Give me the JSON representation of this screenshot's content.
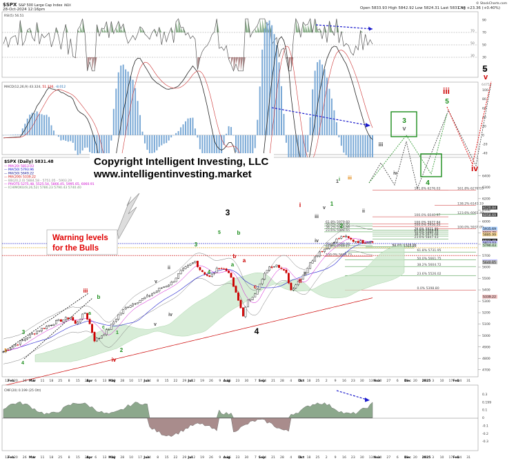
{
  "header": {
    "ticker": "$SPX",
    "name": "S&P 500 Large Cap Index",
    "exchange": "INDX",
    "date": "28-Oct-2024 12:16pm",
    "ohlc": "Open 5833.93  High 5842.92  Low 5824.31  Last 5831.48",
    "change": "Chg +23.36 (+0.40%)",
    "logo": "© StockCharts.com"
  },
  "colors": {
    "up": "#000000",
    "down": "#cc0000",
    "green_wave": "#1a8c1a",
    "orange_wave": "#e08000",
    "blue_wave": "#2020c0"
  },
  "chart_data": [
    {
      "type": "line",
      "panel": "rsi",
      "legend": "RSI(5) 56.51",
      "ylim": [
        0,
        100
      ],
      "levels": [
        30,
        50,
        70
      ],
      "right_ticks": [
        "90",
        "70",
        "50",
        "30",
        "10"
      ],
      "notes": [
        "70",
        "50",
        "30"
      ]
    },
    {
      "type": "line",
      "panel": "macd",
      "legend_label": "MACD(12,26,9) 43.324, ",
      "legend_sig": "51.336",
      "legend_hist": ", -8.012",
      "ylim": [
        -40,
        110
      ],
      "right_ticks": [
        "100",
        "80",
        "60",
        "40",
        "20",
        "0",
        "-20",
        "-40"
      ],
      "last_macd": "43.324",
      "last_signal": "51.336",
      "last_hist": "-8.012"
    },
    {
      "type": "line",
      "panel": "price",
      "title": "$SPX (Daily) 5831.48",
      "legend": [
        {
          "name": "MA(20) 5813.03",
          "color": "#cc00cc"
        },
        {
          "name": "MA(50) 5793.96",
          "color": "#0000cc"
        },
        {
          "name": "MA(50) 5649.22",
          "color": "#000088"
        },
        {
          "name": "MA(200) 5339.22",
          "color": "#cc0000"
        },
        {
          "name": "BB(20,2.0) 5884.58 - 5751.05 - 5903.29",
          "color": "#888888"
        },
        {
          "name": "PIVOTS 5275.48, 5525.54, 5866.45, 5995.65, 6060.91",
          "color": "#cc00cc"
        },
        {
          "name": "ICHIMOKU(9,26,52) 5786.23 5790.43 5740.40",
          "color": "#6e8e6e"
        }
      ],
      "ylim": [
        4650,
        6550
      ],
      "right_ticks": [
        "6400",
        "6300",
        "6200",
        "6100",
        "6000",
        "5900",
        "5800",
        "5700",
        "5600",
        "5500",
        "5400",
        "5300",
        "5200",
        "5100",
        "5000",
        "4900",
        "4800",
        "4700"
      ],
      "right_flags": [
        {
          "v": 6120,
          "t": "6120.84",
          "c": "#ffffff",
          "bg": "#3a3a3a"
        },
        {
          "v": 6058,
          "t": "6058.69",
          "c": "#ffffff",
          "bg": "#3a3a3a"
        },
        {
          "v": 5935,
          "t": "5935.69",
          "c": "#000",
          "bg": "#aad0ff"
        },
        {
          "v": 5903,
          "t": "5903.79",
          "c": "#000",
          "bg": "#f0c0c0"
        },
        {
          "v": 5885,
          "t": "5885.99",
          "c": "#000",
          "bg": "#ffe0a0"
        },
        {
          "v": 5831,
          "t": "5831.48",
          "c": "#ffffff",
          "bg": "#222222"
        },
        {
          "v": 5813,
          "t": "5813.03",
          "c": "#000",
          "bg": "#c0c0ff"
        },
        {
          "v": 5790,
          "t": "5790.43",
          "c": "#000",
          "bg": "#c8e6c8"
        },
        {
          "v": 5649,
          "t": "5649.22",
          "c": "#000",
          "bg": "#c0c0ff"
        },
        {
          "v": 5640,
          "t": "5640.65",
          "c": "#000",
          "bg": "#c0c0c0"
        },
        {
          "v": 5339,
          "t": "5339.22",
          "c": "#000",
          "bg": "#f0c0c0"
        }
      ],
      "fib_levels": [
        {
          "t": "161.8% 6276.03",
          "v": 6276,
          "side": "right"
        },
        {
          "t": "138.2% 6143.19",
          "v": 6143,
          "side": "right"
        },
        {
          "t": "123.6% 6061.40",
          "v": 6061,
          "side": "right"
        },
        {
          "t": "100.0% 5937.09",
          "v": 5937,
          "side": "right"
        },
        {
          "t": "161.8% 6276.03",
          "v": 6276,
          "side": "mid"
        },
        {
          "t": "100.0% 5977.84",
          "v": 5978,
          "side": "mid"
        },
        {
          "t": "100.0% 6040.97",
          "v": 6041,
          "side": "mid"
        },
        {
          "t": "100.0% 5956.20",
          "v": 5956,
          "side": "mid"
        },
        {
          "t": "78.6% 5921.81",
          "v": 5922,
          "side": "mid"
        },
        {
          "t": "61.8% 5908.44",
          "v": 5908,
          "side": "mid"
        },
        {
          "t": "50.0% 5890.10",
          "v": 5890,
          "side": "mid"
        },
        {
          "t": "38.2% 5871.68",
          "v": 5872,
          "side": "mid"
        },
        {
          "t": "23.6% 5847.43",
          "v": 5847,
          "side": "mid"
        },
        {
          "t": "61.8% 5731.95",
          "v": 5732,
          "side": "right2"
        },
        {
          "t": "50.0% 5661.75",
          "v": 5662,
          "side": "right2"
        },
        {
          "t": "38.2% 5604.72",
          "v": 5605,
          "side": "right2"
        },
        {
          "t": "23.6% 5526.02",
          "v": 5526,
          "side": "right2"
        },
        {
          "t": "0.0% 5398.80",
          "v": 5399,
          "side": "right2"
        },
        {
          "t": "100.0% 5694.73",
          "v": 5695,
          "side": "left"
        },
        {
          "t": "61.8% 5979.60",
          "v": 5980,
          "side": "left"
        },
        {
          "t": "50.0% 5960.95",
          "v": 5961,
          "side": "left"
        },
        {
          "t": "38.2% 5934.54",
          "v": 5935,
          "side": "left"
        },
        {
          "t": "23.6% 5908.65",
          "v": 5909,
          "side": "left"
        },
        {
          "t": "76.4% 5788.00",
          "v": 5788,
          "side": "left"
        },
        {
          "t": "61.8% 5769.17",
          "v": 5769,
          "side": "left"
        },
        {
          "t": "78.6% 5767.80",
          "v": 5768,
          "side": "left2"
        },
        {
          "t": "62.8% 5778.05",
          "v": 5778,
          "side": "left2"
        }
      ],
      "target_label": "6475",
      "copyright_line1": "Copyright Intelligent Investing, LLC",
      "copyright_line2": "www.intelligentinvesting.market",
      "warning_line1": "Warning levels",
      "warning_line2": "for the Bulls"
    },
    {
      "type": "area",
      "panel": "cmf",
      "legend": "CMF(20) 0.199 (25 Ott)",
      "ylim": [
        -0.4,
        0.4
      ],
      "right_ticks": [
        "0.3",
        "0.199",
        "0.1",
        "0",
        "-0.1",
        "-0.2",
        "-0.3"
      ]
    }
  ],
  "x_axis": {
    "months": [
      "Feb",
      "Mar",
      "Apr",
      "May",
      "Jun",
      "Jul",
      "Aug",
      "Sep",
      "Oct",
      "Nov",
      "Dec",
      "2025",
      "Feb"
    ],
    "day_ticks": [
      "12",
      "20",
      "26",
      "4",
      "11",
      "18",
      "25",
      "8",
      "15",
      "22",
      "6",
      "13",
      "20",
      "28",
      "10",
      "17",
      "24",
      "8",
      "15",
      "22",
      "29",
      "12",
      "19",
      "26",
      "9",
      "16",
      "23",
      "30",
      "7",
      "14",
      "21",
      "28",
      "4",
      "11",
      "18",
      "25",
      "2",
      "9",
      "16",
      "23",
      "30",
      "13",
      "20",
      "27",
      "6",
      "13",
      "20",
      "27",
      "3",
      "10",
      "17",
      "24",
      "31"
    ]
  }
}
